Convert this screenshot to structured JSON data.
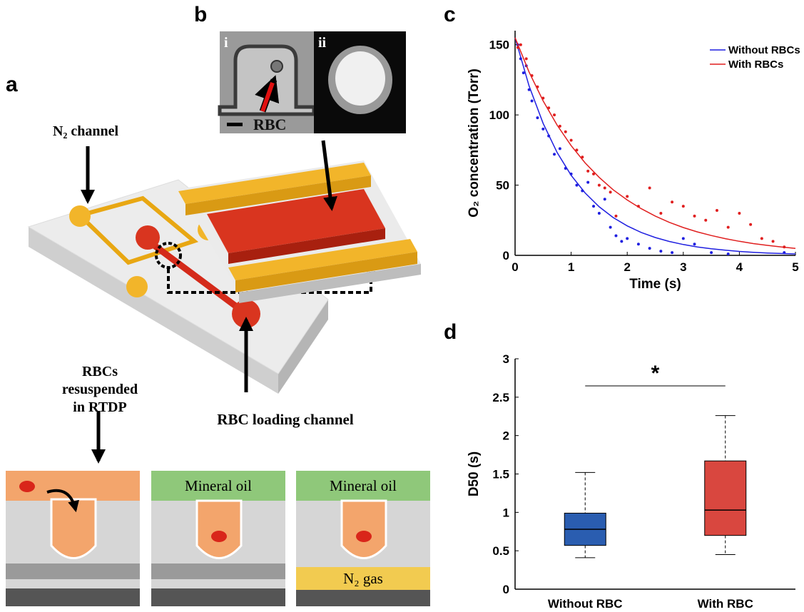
{
  "figure": {
    "panel_labels": [
      "a",
      "b",
      "c",
      "d"
    ],
    "micrograph_labels": [
      "i",
      "ii"
    ],
    "labels": {
      "n2_channel": "N₂ channel",
      "rbc": "RBC",
      "rbc_loading": "RBC loading channel",
      "rbcs_resuspended": [
        "RBCs",
        "resuspended",
        "in RTDP"
      ],
      "mineral_oil": [
        "Mineral oil",
        "Mineral oil"
      ],
      "n2_gas": "N₂ gas"
    }
  },
  "chart_data": [
    {
      "type": "scatter",
      "x_label": "Time (s)",
      "y_label": "O₂ concentration (Torr)",
      "xlim": [
        0,
        5
      ],
      "ylim": [
        0,
        160
      ],
      "xticks": [
        0,
        1,
        2,
        3,
        4,
        5
      ],
      "yticks": [
        0,
        50,
        100,
        150
      ],
      "legend": "upper right",
      "series": [
        {
          "name": "Without RBCs",
          "color": "#1f1fe0",
          "x": [
            0.05,
            0.1,
            0.15,
            0.2,
            0.25,
            0.3,
            0.4,
            0.5,
            0.6,
            0.7,
            0.8,
            0.9,
            1.0,
            1.1,
            1.2,
            1.3,
            1.4,
            1.5,
            1.6,
            1.7,
            1.8,
            1.9,
            2.0,
            2.2,
            2.4,
            2.6,
            2.8,
            3.0,
            3.2,
            3.5,
            3.8,
            4.8
          ],
          "values": [
            150,
            140,
            130,
            135,
            118,
            110,
            98,
            90,
            85,
            72,
            76,
            62,
            58,
            50,
            46,
            52,
            35,
            30,
            40,
            20,
            14,
            10,
            12,
            8,
            5,
            3,
            2,
            12,
            8,
            2,
            1,
            2
          ],
          "curve": {
            "x": [
              0,
              0.25,
              0.5,
              0.75,
              1,
              1.25,
              1.5,
              1.75,
              2,
              2.25,
              2.5,
              2.75,
              3,
              3.25,
              3.5,
              3.75,
              4,
              4.25,
              4.5,
              4.75,
              5
            ],
            "values": [
              155,
              120.7,
              94.0,
              73.2,
              57.0,
              44.4,
              34.6,
              26.9,
              21.0,
              16.3,
              12.7,
              9.9,
              7.7,
              6.0,
              4.7,
              3.7,
              2.8,
              2.2,
              1.7,
              1.3,
              1.0
            ]
          }
        },
        {
          "name": "With RBCs",
          "color": "#e01f1f",
          "x": [
            0.05,
            0.1,
            0.2,
            0.3,
            0.4,
            0.5,
            0.6,
            0.7,
            0.8,
            0.9,
            1.0,
            1.1,
            1.2,
            1.3,
            1.4,
            1.5,
            1.6,
            1.7,
            1.8,
            2.0,
            2.2,
            2.4,
            2.6,
            2.8,
            3.0,
            3.2,
            3.4,
            3.6,
            3.8,
            4.0,
            4.2,
            4.4,
            4.6,
            4.8
          ],
          "values": [
            148,
            150,
            140,
            128,
            120,
            112,
            105,
            100,
            92,
            88,
            82,
            75,
            70,
            60,
            58,
            50,
            48,
            45,
            28,
            42,
            35,
            48,
            30,
            38,
            35,
            28,
            25,
            32,
            20,
            30,
            22,
            12,
            10,
            6
          ],
          "curve": {
            "x": [
              0,
              0.25,
              0.5,
              0.75,
              1,
              1.25,
              1.5,
              1.75,
              2,
              2.25,
              2.5,
              2.75,
              3,
              3.25,
              3.5,
              3.75,
              4,
              4.25,
              4.5,
              4.75,
              5
            ],
            "values": [
              155,
              130.6,
              110.0,
              92.7,
              78.1,
              65.8,
              55.5,
              46.7,
              39.4,
              33.2,
              28.0,
              23.5,
              19.8,
              16.7,
              14.1,
              11.9,
              10.0,
              8.4,
              7.1,
              6.0,
              5.0
            ]
          }
        }
      ]
    },
    {
      "type": "box",
      "y_label": "D50 (s)",
      "ylim": [
        0,
        3
      ],
      "yticks": [
        0,
        0.5,
        1,
        1.5,
        2,
        2.5,
        3
      ],
      "categories": [
        "Without RBC",
        "With RBC"
      ],
      "boxes": [
        {
          "min": 0.41,
          "q1": 0.57,
          "median": 0.78,
          "q3": 0.99,
          "max": 1.52,
          "color": "#2a5db0"
        },
        {
          "min": 0.45,
          "q1": 0.7,
          "median": 1.03,
          "q3": 1.67,
          "max": 2.26,
          "color": "#d9473f"
        }
      ],
      "annotation": "*"
    }
  ]
}
